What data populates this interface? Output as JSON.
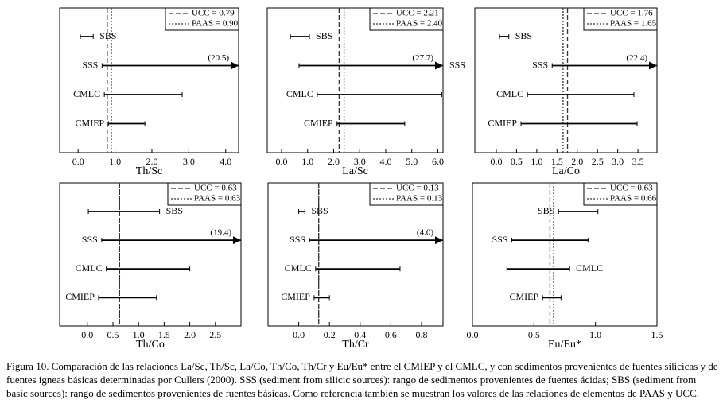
{
  "chart_data": [
    {
      "type": "range",
      "x_label": "Th/Sc",
      "xlim": [
        -0.5,
        4.35
      ],
      "xticks": [
        {
          "value": 0,
          "label": "0.0"
        },
        {
          "value": 1,
          "label": "1.0"
        },
        {
          "value": 2,
          "label": "2.0"
        },
        {
          "value": 3,
          "label": "3.0"
        },
        {
          "value": 4,
          "label": "4.0"
        }
      ],
      "reference_lines": [
        {
          "name": "UCC",
          "value": 0.79,
          "label": "UCC = 0.79"
        },
        {
          "name": "PAAS",
          "value": 0.9,
          "label": "PAAS = 0.90"
        }
      ],
      "ranges": [
        {
          "name": "SBS",
          "low": 0.06,
          "high": 0.41
        },
        {
          "name": "SSS",
          "low": 0.65,
          "high": 20.5,
          "high_label": "(20.5)"
        },
        {
          "name": "CMLC",
          "low": 0.71,
          "high": 2.82
        },
        {
          "name": "CMIEP",
          "low": 0.82,
          "high": 1.81
        }
      ]
    },
    {
      "type": "range",
      "x_label": "La/Sc",
      "xlim": [
        -0.55,
        6.2
      ],
      "xticks": [
        {
          "value": 0,
          "label": "0.0"
        },
        {
          "value": 1,
          "label": "1.0"
        },
        {
          "value": 2,
          "label": "2.0"
        },
        {
          "value": 3,
          "label": "3.0"
        },
        {
          "value": 4,
          "label": "4.0"
        },
        {
          "value": 5,
          "label": "5.0"
        },
        {
          "value": 6,
          "label": "6.0"
        }
      ],
      "reference_lines": [
        {
          "name": "UCC",
          "value": 2.21,
          "label": "UCC = 2.21"
        },
        {
          "name": "PAAS",
          "value": 2.4,
          "label": "PAAS = 2.40"
        }
      ],
      "ranges": [
        {
          "name": "SBS",
          "low": 0.34,
          "high": 1.07
        },
        {
          "name": "SSS",
          "low": 0.67,
          "high": 27.7,
          "high_label": "(27.7)"
        },
        {
          "name": "CMLC",
          "low": 1.37,
          "high": 6.15
        },
        {
          "name": "CMIEP",
          "low": 2.13,
          "high": 4.73
        }
      ]
    },
    {
      "type": "range",
      "x_label": "La/Co",
      "xlim": [
        -0.53,
        3.97
      ],
      "xticks": [
        {
          "value": 0,
          "label": "0.0"
        },
        0.5,
        {
          "value": 1,
          "label": "1.0"
        },
        1.5,
        {
          "value": 2,
          "label": "2.0"
        },
        2.5,
        {
          "value": 3,
          "label": "3.0"
        },
        3.5
      ],
      "reference_lines": [
        {
          "name": "UCC",
          "value": 1.76,
          "label": "UCC = 1.76"
        },
        {
          "name": "PAAS",
          "value": 1.65,
          "label": "PAAS = 1.65"
        }
      ],
      "ranges": [
        {
          "name": "SBS",
          "low": 0.08,
          "high": 0.31
        },
        {
          "name": "SSS",
          "low": 1.38,
          "high": 22.4,
          "high_label": "(22.4)"
        },
        {
          "name": "CMLC",
          "low": 0.77,
          "high": 3.4
        },
        {
          "name": "CMIEP",
          "low": 0.61,
          "high": 3.48
        }
      ]
    },
    {
      "type": "range",
      "x_label": "Th/Co",
      "xlim": [
        -0.54,
        3.0
      ],
      "xticks": [
        {
          "value": 0,
          "label": "0.0"
        },
        0.5,
        {
          "value": 1,
          "label": "1.0"
        },
        1.5,
        {
          "value": 2,
          "label": "2.0"
        },
        2.5
      ],
      "reference_lines": [
        {
          "name": "UCC",
          "value": 0.63,
          "label": "UCC = 0.63"
        },
        {
          "name": "PAAS",
          "value": 0.63,
          "label": "PAAS = 0.63"
        }
      ],
      "ranges": [
        {
          "name": "SBS",
          "low": 0.02,
          "high": 1.41
        },
        {
          "name": "SSS",
          "low": 0.28,
          "high": 19.4,
          "high_label": "(19.4)"
        },
        {
          "name": "CMLC",
          "low": 0.37,
          "high": 2.0
        },
        {
          "name": "CMIEP",
          "low": 0.22,
          "high": 1.35
        }
      ]
    },
    {
      "type": "range",
      "x_label": "Th/Cr",
      "xlim": [
        -0.2,
        0.94
      ],
      "xticks": [
        {
          "value": 0,
          "label": "0.0"
        },
        0.2,
        0.4,
        0.6,
        0.8
      ],
      "reference_lines": [
        {
          "name": "UCC",
          "value": 0.13,
          "label": "UCC = 0.13"
        },
        {
          "name": "PAAS",
          "value": 0.13,
          "label": "PAAS = 0.13"
        }
      ],
      "ranges": [
        {
          "name": "SBS",
          "low": 0.0,
          "high": 0.04
        },
        {
          "name": "SSS",
          "low": 0.07,
          "high": 4.0,
          "high_label": "(4.0)"
        },
        {
          "name": "CMLC",
          "low": 0.11,
          "high": 0.66
        },
        {
          "name": "CMIEP",
          "low": 0.1,
          "high": 0.2
        }
      ]
    },
    {
      "type": "range",
      "x_label": "Eu/Eu*",
      "xlim": [
        0,
        1.5
      ],
      "xticks": [
        {
          "value": 0,
          "label": "0.0"
        },
        0.5,
        {
          "value": 1,
          "label": "1.0"
        },
        1.5
      ],
      "reference_lines": [
        {
          "name": "UCC",
          "value": 0.63,
          "label": "UCC = 0.63"
        },
        {
          "name": "PAAS",
          "value": 0.66,
          "label": "PAAS = 0.66"
        }
      ],
      "ranges": [
        {
          "name": "SBS",
          "low": 0.7,
          "high": 1.02
        },
        {
          "name": "SSS",
          "low": 0.32,
          "high": 0.94
        },
        {
          "name": "CMLC",
          "low": 0.28,
          "high": 0.79
        },
        {
          "name": "CMIEP",
          "low": 0.57,
          "high": 0.72
        }
      ]
    }
  ],
  "caption": "Figura 10. Comparación de las relaciones La/Sc, Th/Sc, La/Co, Th/Co, Th/Cr y Eu/Eu* entre el CMIEP y el CMLC, y con sedimentos provenientes de fuentes silícicas y de fuentes ígneas básicas determinadas por Cullers (2000). SSS (sediment from silicic sources): rango de sedimentos provenientes de fuentes ácidas; SBS (sediment from basic sources): rango de sedimentos provenientes de fuentes básicas. Como referencia también se muestran los valores de las relaciones de elementos de PAAS y UCC."
}
